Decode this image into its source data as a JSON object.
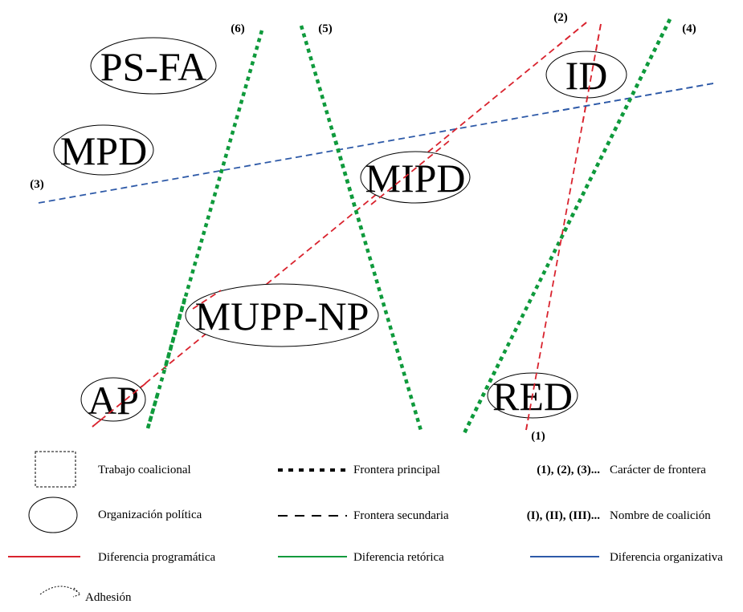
{
  "organizations": [
    {
      "id": "ps-fa",
      "label": "PS-FA"
    },
    {
      "id": "mpd",
      "label": "MPD"
    },
    {
      "id": "mipd",
      "label": "MIPD"
    },
    {
      "id": "id",
      "label": "ID"
    },
    {
      "id": "mupp-np",
      "label": "MUPP-NP"
    },
    {
      "id": "ap",
      "label": "AP"
    },
    {
      "id": "red",
      "label": "RED"
    }
  ],
  "frontiers": [
    {
      "id": "1",
      "label": "(1)",
      "style": "secondary",
      "difference": "programatic",
      "color": "#d9232e"
    },
    {
      "id": "2",
      "label": "(2)",
      "style": "secondary",
      "difference": "programatic",
      "color": "#d9232e"
    },
    {
      "id": "3",
      "label": "(3)",
      "style": "secondary",
      "difference": "organizational",
      "color": "#2e5aa8"
    },
    {
      "id": "4",
      "label": "(4)",
      "style": "principal",
      "difference": "rhetorical",
      "color": "#0f9a3c"
    },
    {
      "id": "5",
      "label": "(5)",
      "style": "principal",
      "difference": "rhetorical",
      "color": "#0f9a3c"
    },
    {
      "id": "6",
      "label": "(6)",
      "style": "principal",
      "difference": "rhetorical",
      "color": "#0f9a3c"
    }
  ],
  "legend": {
    "trabajo": "Trabajo coalicional",
    "organizacion": "Organización política",
    "principal": "Frontera principal",
    "secundaria": "Frontera secundaria",
    "caracter_keys": "(1), (2), (3)...",
    "caracter_label": "Carácter de frontera",
    "nombre_keys": "(I), (II), (III)...",
    "nombre_label": "Nombre de coalición",
    "programatica": "Diferencia programática",
    "retorica": "Diferencia retórica",
    "organizativa": "Diferencia organizativa",
    "adhesion": "Adhesión"
  },
  "colors": {
    "programatica": "#d9232e",
    "retorica": "#0f9a3c",
    "organizativa": "#2e5aa8"
  }
}
